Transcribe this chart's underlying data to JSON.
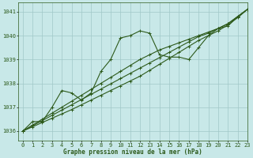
{
  "title": "Graphe pression niveau de la mer (hPa)",
  "bg_color": "#c8e8e8",
  "grid_color": "#a0c8c8",
  "line_color": "#2d5a1b",
  "xlim": [
    -0.5,
    23
  ],
  "ylim": [
    1035.6,
    1041.4
  ],
  "yticks": [
    1036,
    1037,
    1038,
    1039,
    1040,
    1041
  ],
  "xtick_labels": [
    "0",
    "1",
    "2",
    "3",
    "4",
    "5",
    "6",
    "7",
    "8",
    "9",
    "10",
    "11",
    "12",
    "13",
    "14",
    "15",
    "16",
    "17",
    "18",
    "19",
    "20",
    "21",
    "22",
    "23"
  ],
  "wavy": [
    1036.0,
    1036.4,
    1036.4,
    1037.0,
    1037.7,
    1037.6,
    1037.3,
    1037.6,
    1038.5,
    1039.0,
    1039.9,
    1040.0,
    1040.2,
    1040.1,
    1039.2,
    1039.1,
    1039.1,
    1039.0,
    1039.5,
    1040.0,
    1040.3,
    1040.4,
    1040.8,
    1041.1
  ],
  "linear1": [
    1036.0,
    1036.25,
    1036.5,
    1036.75,
    1037.0,
    1037.25,
    1037.5,
    1037.75,
    1038.0,
    1038.25,
    1038.5,
    1038.75,
    1039.0,
    1039.2,
    1039.4,
    1039.55,
    1039.7,
    1039.85,
    1040.0,
    1040.15,
    1040.3,
    1040.5,
    1040.8,
    1041.1
  ],
  "linear2": [
    1036.0,
    1036.22,
    1036.44,
    1036.66,
    1036.88,
    1037.1,
    1037.32,
    1037.54,
    1037.76,
    1037.98,
    1038.2,
    1038.42,
    1038.64,
    1038.86,
    1039.08,
    1039.3,
    1039.52,
    1039.74,
    1039.96,
    1040.1,
    1040.3,
    1040.5,
    1040.8,
    1041.1
  ],
  "linear3": [
    1036.0,
    1036.18,
    1036.36,
    1036.54,
    1036.72,
    1036.9,
    1037.1,
    1037.3,
    1037.5,
    1037.7,
    1037.9,
    1038.1,
    1038.3,
    1038.55,
    1038.8,
    1039.05,
    1039.3,
    1039.55,
    1039.8,
    1040.0,
    1040.2,
    1040.45,
    1040.75,
    1041.1
  ],
  "marker": "+",
  "markersize": 3,
  "linewidth": 0.8,
  "label_fontsize": 5.5,
  "tick_fontsize": 5.0,
  "label_color": "#2d5a1b"
}
